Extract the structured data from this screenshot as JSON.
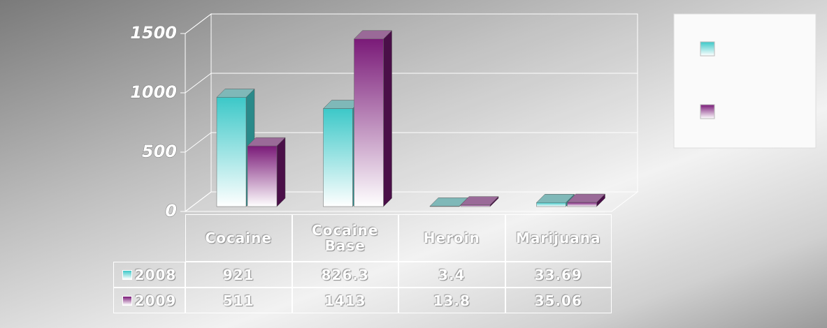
{
  "chart_data": {
    "type": "bar3d",
    "categories": [
      "Cocaine",
      "Cocaine Base",
      "Heroin",
      "Marijuana"
    ],
    "series": [
      {
        "name": "2008",
        "color": "#3cc8c8",
        "values": [
          921,
          826.3,
          3.4,
          33.69
        ]
      },
      {
        "name": "2009",
        "color": "#7a1a78",
        "values": [
          511,
          1413,
          13.8,
          35.06
        ]
      }
    ],
    "ylim": [
      0,
      1500
    ],
    "yticks": [
      0,
      500,
      1000,
      1500
    ],
    "grid": true,
    "legend": "right"
  }
}
